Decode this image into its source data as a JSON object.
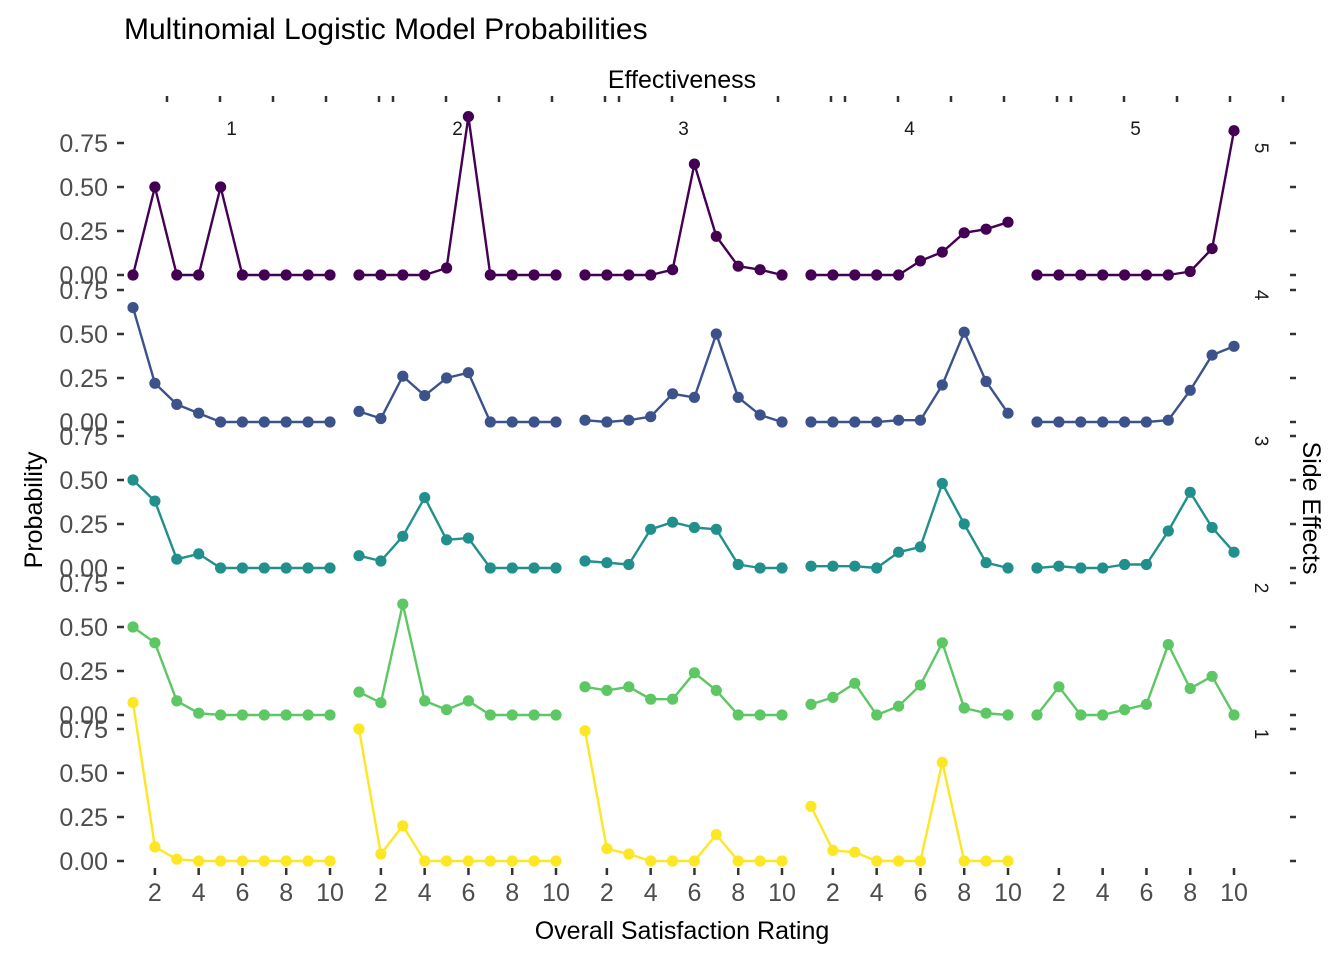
{
  "chart_data": {
    "type": "line",
    "title": "Multinomial Logistic Model Probabilities",
    "xlabel": "Overall Satisfaction Rating",
    "ylabel": "Probability",
    "col_facet_title": "Effectiveness",
    "row_facet_title": "Side Effects",
    "col_facets": [
      "1",
      "2",
      "3",
      "4",
      "5"
    ],
    "row_facets": [
      "5",
      "4",
      "3",
      "2",
      "1"
    ],
    "x": [
      1,
      2,
      3,
      4,
      5,
      6,
      7,
      8,
      9,
      10
    ],
    "x_ticks": [
      "2",
      "4",
      "6",
      "8",
      "10"
    ],
    "y_ticks": [
      "0.00",
      "0.25",
      "0.50",
      "0.75"
    ],
    "ylim": [
      0,
      0.9
    ],
    "xlim": [
      1,
      10
    ],
    "colors": {
      "5": "#440154",
      "4": "#3B528B",
      "3": "#21908C",
      "2": "#5DC863",
      "1": "#FDE725"
    },
    "panels": [
      {
        "side_effects": "5",
        "effectiveness": "1",
        "values": [
          0.0,
          0.5,
          0.0,
          0.0,
          0.5,
          0.0,
          0.0,
          0.0,
          0.0,
          0.0
        ]
      },
      {
        "side_effects": "5",
        "effectiveness": "2",
        "values": [
          0.0,
          0.0,
          0.0,
          0.0,
          0.04,
          0.9,
          0.0,
          0.0,
          0.0,
          0.0
        ]
      },
      {
        "side_effects": "5",
        "effectiveness": "3",
        "values": [
          0.0,
          0.0,
          0.0,
          0.0,
          0.03,
          0.63,
          0.22,
          0.05,
          0.03,
          0.0
        ]
      },
      {
        "side_effects": "5",
        "effectiveness": "4",
        "values": [
          0.0,
          0.0,
          0.0,
          0.0,
          0.0,
          0.08,
          0.13,
          0.24,
          0.26,
          0.3
        ]
      },
      {
        "side_effects": "5",
        "effectiveness": "5",
        "values": [
          0.0,
          0.0,
          0.0,
          0.0,
          0.0,
          0.0,
          0.0,
          0.02,
          0.15,
          0.82
        ]
      },
      {
        "side_effects": "4",
        "effectiveness": "1",
        "values": [
          0.65,
          0.22,
          0.1,
          0.05,
          0.0,
          0.0,
          0.0,
          0.0,
          0.0,
          0.0
        ]
      },
      {
        "side_effects": "4",
        "effectiveness": "2",
        "values": [
          0.06,
          0.02,
          0.26,
          0.15,
          0.25,
          0.28,
          0.0,
          0.0,
          0.0,
          0.0
        ]
      },
      {
        "side_effects": "4",
        "effectiveness": "3",
        "values": [
          0.01,
          0.0,
          0.01,
          0.03,
          0.16,
          0.14,
          0.5,
          0.14,
          0.04,
          0.0
        ]
      },
      {
        "side_effects": "4",
        "effectiveness": "4",
        "values": [
          0.0,
          0.0,
          0.0,
          0.0,
          0.01,
          0.01,
          0.21,
          0.51,
          0.23,
          0.05
        ]
      },
      {
        "side_effects": "4",
        "effectiveness": "5",
        "values": [
          0.0,
          0.0,
          0.0,
          0.0,
          0.0,
          0.0,
          0.01,
          0.18,
          0.38,
          0.43
        ]
      },
      {
        "side_effects": "3",
        "effectiveness": "1",
        "values": [
          0.5,
          0.38,
          0.05,
          0.08,
          0.0,
          0.0,
          0.0,
          0.0,
          0.0,
          0.0
        ]
      },
      {
        "side_effects": "3",
        "effectiveness": "2",
        "values": [
          0.07,
          0.04,
          0.18,
          0.4,
          0.16,
          0.17,
          0.0,
          0.0,
          0.0,
          0.0
        ]
      },
      {
        "side_effects": "3",
        "effectiveness": "3",
        "values": [
          0.04,
          0.03,
          0.02,
          0.22,
          0.26,
          0.23,
          0.22,
          0.02,
          0.0,
          0.0
        ]
      },
      {
        "side_effects": "3",
        "effectiveness": "4",
        "values": [
          0.01,
          0.01,
          0.01,
          0.0,
          0.09,
          0.12,
          0.48,
          0.25,
          0.03,
          0.0
        ]
      },
      {
        "side_effects": "3",
        "effectiveness": "5",
        "values": [
          0.0,
          0.01,
          0.0,
          0.0,
          0.02,
          0.02,
          0.21,
          0.43,
          0.23,
          0.09
        ]
      },
      {
        "side_effects": "2",
        "effectiveness": "1",
        "values": [
          0.5,
          0.41,
          0.08,
          0.01,
          0.0,
          0.0,
          0.0,
          0.0,
          0.0,
          0.0
        ]
      },
      {
        "side_effects": "2",
        "effectiveness": "2",
        "values": [
          0.13,
          0.07,
          0.63,
          0.08,
          0.03,
          0.08,
          0.0,
          0.0,
          0.0,
          0.0
        ]
      },
      {
        "side_effects": "2",
        "effectiveness": "3",
        "values": [
          0.16,
          0.14,
          0.16,
          0.09,
          0.09,
          0.24,
          0.14,
          0.0,
          0.0,
          0.0
        ]
      },
      {
        "side_effects": "2",
        "effectiveness": "4",
        "values": [
          0.06,
          0.1,
          0.18,
          0.0,
          0.05,
          0.17,
          0.41,
          0.04,
          0.01,
          0.0
        ]
      },
      {
        "side_effects": "2",
        "effectiveness": "5",
        "values": [
          0.0,
          0.16,
          0.0,
          0.0,
          0.03,
          0.06,
          0.4,
          0.15,
          0.22,
          0.0
        ]
      },
      {
        "side_effects": "1",
        "effectiveness": "1",
        "values": [
          0.9,
          0.08,
          0.01,
          0.0,
          0.0,
          0.0,
          0.0,
          0.0,
          0.0,
          0.0
        ]
      },
      {
        "side_effects": "1",
        "effectiveness": "2",
        "values": [
          0.75,
          0.04,
          0.2,
          0.0,
          0.0,
          0.0,
          0.0,
          0.0,
          0.0,
          0.0
        ]
      },
      {
        "side_effects": "1",
        "effectiveness": "3",
        "values": [
          0.74,
          0.07,
          0.04,
          0.0,
          0.0,
          0.0,
          0.15,
          0.0,
          0.0,
          0.0
        ]
      },
      {
        "side_effects": "1",
        "effectiveness": "4",
        "values": [
          0.31,
          0.06,
          0.05,
          0.0,
          0.0,
          0.0,
          0.56,
          0.0,
          0.0,
          0.0
        ]
      },
      {
        "side_effects": "1",
        "effectiveness": "5",
        "values": []
      }
    ]
  }
}
